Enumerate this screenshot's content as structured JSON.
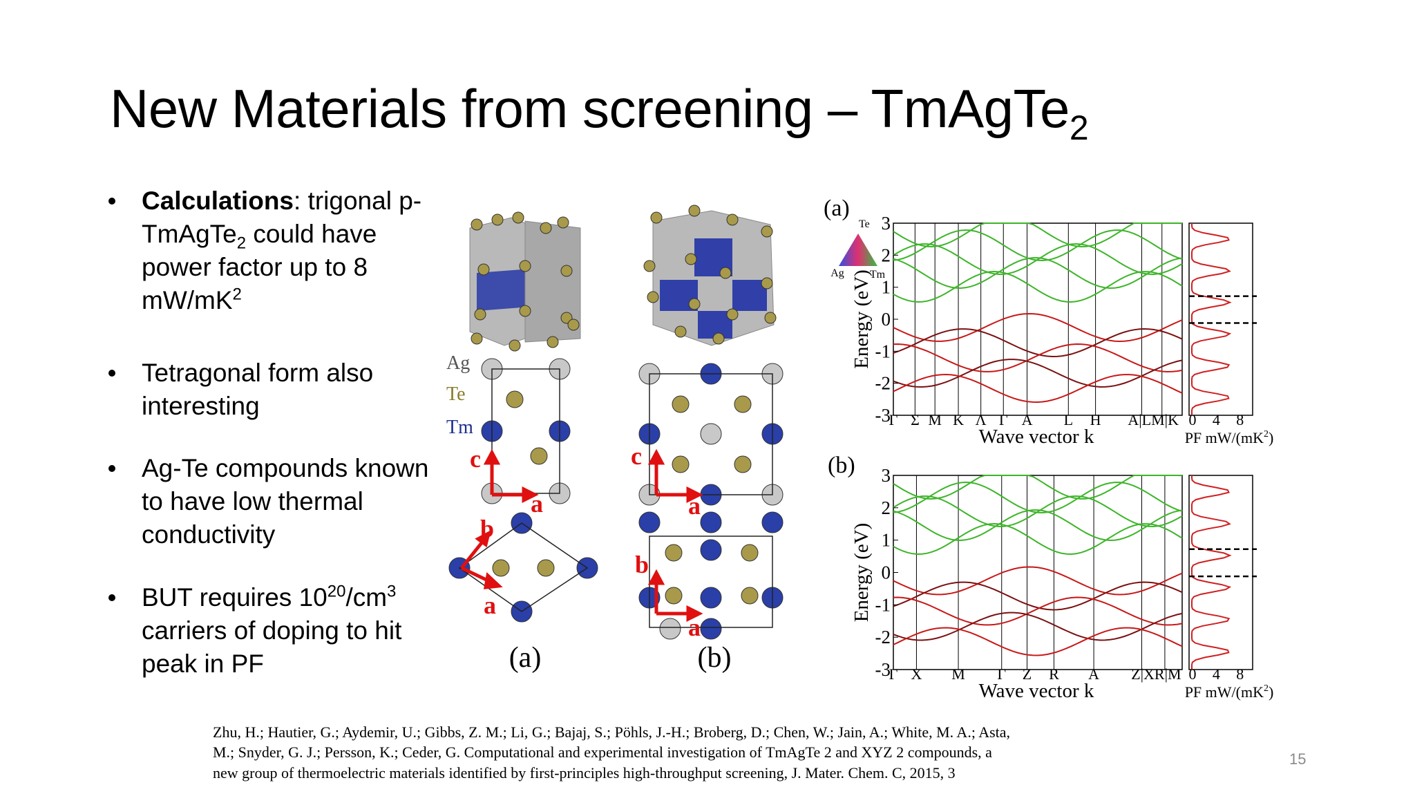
{
  "title": {
    "text": "New Materials from screening – TmAgTe",
    "subscript": "2"
  },
  "bullets": [
    {
      "runs": [
        {
          "text": "Calculations",
          "bold": true
        },
        {
          "text": ": trigonal p-TmAgTe"
        },
        {
          "text": "2",
          "sub": true
        },
        {
          "text": " could have power factor up to 8 mW/mK"
        },
        {
          "text": "2",
          "sup": true
        }
      ]
    },
    {
      "runs": [
        {
          "text": "Tetragonal form also interesting"
        }
      ]
    },
    {
      "runs": [
        {
          "text": "Ag-Te compounds known to have low thermal conductivity"
        }
      ]
    },
    {
      "runs": [
        {
          "text": "BUT requires 10"
        },
        {
          "text": "20",
          "sup": true
        },
        {
          "text": "/cm"
        },
        {
          "text": "3",
          "sup": true
        },
        {
          "text": " carriers of doping to hit peak in PF"
        }
      ]
    }
  ],
  "structure_figure": {
    "legend": [
      "Ag",
      "Te",
      "Tm"
    ],
    "panels": [
      {
        "caption": "(a)",
        "axes": [
          "c",
          "a",
          "b",
          "a"
        ]
      },
      {
        "caption": "(b)",
        "axes": [
          "c",
          "a",
          "b",
          "a"
        ]
      }
    ]
  },
  "band_figure": {
    "triangle": [
      "Te",
      "Ag",
      "Tm"
    ],
    "panels": [
      {
        "label": "(a)",
        "ylabel": "Energy (eV)",
        "xlabel": "Wave vector k",
        "pf_label": "PF mW/(mK",
        "pf_sup": "2",
        "pf_close": ")",
        "ylim": [
          -3,
          3
        ],
        "yticks": [
          3,
          2,
          1,
          0,
          -1,
          -2,
          -3
        ],
        "pf_ticks": [
          0,
          4,
          8
        ],
        "kpoints": [
          "Γ",
          "Σ",
          "M",
          "K",
          "Λ",
          "Γ",
          "A",
          "L",
          "H",
          "A|LM|K"
        ]
      },
      {
        "label": "(b)",
        "ylabel": "Energy (eV)",
        "xlabel": "Wave vector k",
        "pf_label": "PF mW/(mK",
        "pf_sup": "2",
        "pf_close": ")",
        "ylim": [
          -3,
          3
        ],
        "yticks": [
          3,
          2,
          1,
          0,
          -1,
          -2,
          -3
        ],
        "pf_ticks": [
          0,
          4,
          8
        ],
        "kpoints": [
          "Γ",
          "X",
          "M",
          "Γ",
          "Z",
          "R",
          "A",
          "Z|XR|M"
        ]
      }
    ]
  },
  "citation": [
    "Zhu, H.; Hautier, G.; Aydemir, U.; Gibbs, Z. M.; Li, G.; Bajaj, S.; Pöhls, J.-H.; Broberg, D.; Chen, W.; Jain, A.; White, M. A.; Asta,",
    "M.; Snyder, G. J.; Persson, K.; Ceder, G. Computational and experimental investigation of TmAgTe 2 and XYZ 2 compounds, a",
    "new group of thermoelectric materials identified by first-principles high-throughput screening, J. Mater. Chem. C, 2015, 3"
  ],
  "page_number": "15"
}
